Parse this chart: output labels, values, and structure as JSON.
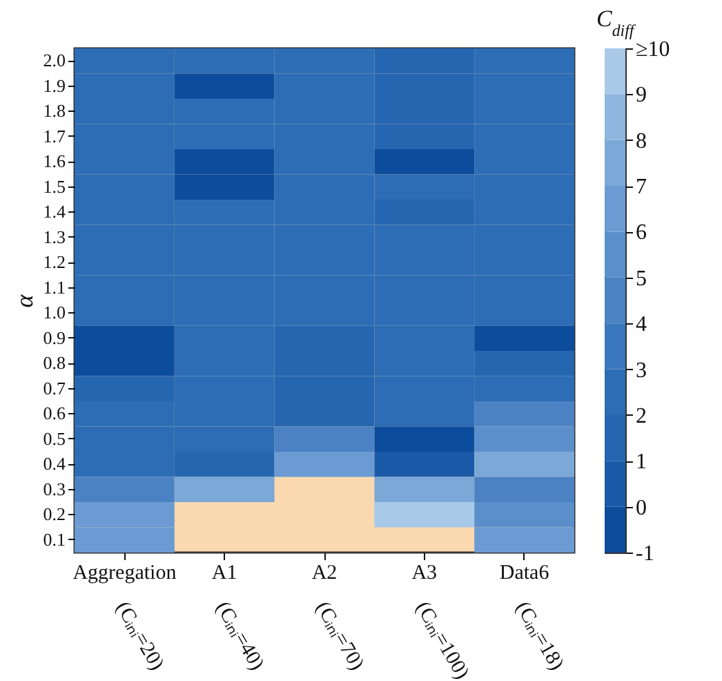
{
  "chart_data": {
    "type": "heatmap",
    "ylabel": "α",
    "clabel": "C$_{diff}$",
    "categories": [
      "Aggregation (Cᵢₙᵢ=20)",
      "A1 (Cᵢₙᵢ=40)",
      "A2 (Cᵢₙᵢ=70)",
      "A3 (Cᵢₙᵢ=100)",
      "Data6 (Cᵢₙᵢ=18)"
    ],
    "y_categories": [
      "2.0",
      "1.9",
      "1.8",
      "1.7",
      "1.6",
      "1.5",
      "1.4",
      "1.3",
      "1.2",
      "1.1",
      "1.0",
      "0.9",
      "0.8",
      "0.7",
      "0.6",
      "0.5",
      "0.4",
      "0.3",
      "0.2",
      "0.1"
    ],
    "cells": [
      [
        2.5,
        2.5,
        2.5,
        1.5,
        2.5
      ],
      [
        2.5,
        -0.5,
        2.5,
        1.5,
        2.5
      ],
      [
        2.5,
        2.5,
        2.5,
        1.5,
        2.5
      ],
      [
        2.5,
        2.5,
        2.5,
        1.5,
        2.5
      ],
      [
        2.5,
        -0.5,
        2.5,
        -0.5,
        2.5
      ],
      [
        2.5,
        -0.5,
        2.5,
        2.5,
        2.5
      ],
      [
        2.5,
        2.5,
        2.5,
        1.5,
        2.5
      ],
      [
        2.5,
        2.5,
        2.5,
        2.5,
        2.5
      ],
      [
        2.5,
        2.5,
        2.5,
        2.5,
        2.5
      ],
      [
        2.5,
        2.5,
        2.5,
        2.5,
        2.5
      ],
      [
        2.5,
        2.5,
        2.5,
        2.5,
        2.5
      ],
      [
        -0.5,
        2.5,
        1.5,
        2.5,
        -0.5
      ],
      [
        -0.5,
        2.5,
        1.5,
        2.5,
        1.5
      ],
      [
        1.5,
        2.5,
        1.5,
        2.5,
        2.5
      ],
      [
        2.5,
        2.5,
        1.5,
        2.5,
        4.5
      ],
      [
        2.5,
        2.5,
        4.5,
        -0.5,
        5.5
      ],
      [
        2.5,
        1.5,
        6.5,
        0.5,
        7.5
      ],
      [
        4.5,
        7.5,
        null,
        7.5,
        4.5
      ],
      [
        6.5,
        null,
        null,
        9.5,
        5.5
      ],
      [
        6.5,
        null,
        null,
        null,
        6.5
      ]
    ],
    "clim": [
      -1,
      10
    ],
    "cticks": [
      -1,
      0,
      1,
      2,
      3,
      4,
      5,
      6,
      7,
      8,
      9,
      {
        "value": 10,
        "label": "≥10"
      }
    ],
    "colors": [
      "#0b4c9c",
      "#1a5aa8",
      "#2566b0",
      "#2c6db6",
      "#3a77bd",
      "#4a82c4",
      "#5b8fcb",
      "#6b9bd2",
      "#7ca8d8",
      "#8fb6df",
      "#a9c9e9"
    ]
  }
}
